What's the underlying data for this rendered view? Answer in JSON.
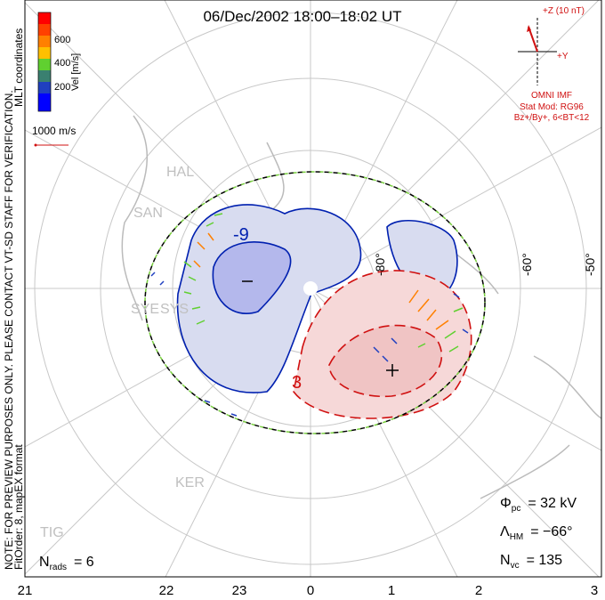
{
  "title": "06/Dec/2002 18:00–18:02 UT",
  "side_note": "NOTE: FOR PREVIEW PURPOSES ONLY. PLEASE CONTACT VT-SD STAFF FOR VERIFICATION.",
  "fit_info": "FitOrder: 8, mapEX format",
  "coords": "MLT coordinates",
  "colorbar": {
    "label": "Vel [m/s]",
    "ticks": [
      "200",
      "400",
      "600"
    ],
    "colors": [
      "#0000ff",
      "#2040c0",
      "#3a8070",
      "#60d030",
      "#ffc000",
      "#ff8000",
      "#ff4000",
      "#ff0000"
    ]
  },
  "ref_vector": "1000 m/s",
  "imf": {
    "z_label": "+Z (10 nT)",
    "y_label": "+Y",
    "source": "OMNI IMF",
    "model": "Stat Mod: RG96",
    "condition": "Bz+/By+, 6<BT<12"
  },
  "lat_labels": [
    "-80°",
    "-60°",
    "-50°"
  ],
  "stations": [
    "HAL",
    "SAN",
    "SYE",
    "SYS",
    "KER",
    "TIG"
  ],
  "contour_labels": [
    "-9",
    "3"
  ],
  "stats": {
    "phi_sym": "Φ",
    "phi_sub": "pc",
    "phi_val": "= 32 kV",
    "lam_sym": "Λ",
    "lam_sub": "HM",
    "lam_val": "= −66°",
    "n_sym": "N",
    "n_sub": "vc",
    "n_val": "= 135"
  },
  "nrads": {
    "sym": "N",
    "sub": "rads",
    "val": "= 6"
  },
  "mlt_labels": [
    "21",
    "22",
    "23",
    "0",
    "1",
    "2",
    "3"
  ]
}
